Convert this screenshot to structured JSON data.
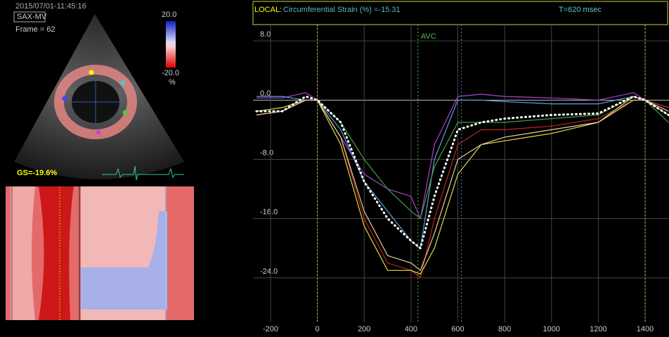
{
  "left_panel": {
    "timestamp": "2015/07/01-11:45:16",
    "view": "SAX-MV",
    "frame": "Frame = 62",
    "scale_top": "20.0",
    "scale_bottom": "-20.0",
    "scale_unit": "%",
    "global_strain": "GS=-19.6%"
  },
  "chart_data": {
    "type": "line",
    "local_label": "LOCAL:",
    "measure": "Circumferential Strain (%) =-15.31",
    "time_label": "T=620 msec",
    "x": [
      -260,
      -150,
      -50,
      0,
      100,
      200,
      300,
      400,
      440,
      500,
      600,
      700,
      800,
      1000,
      1200,
      1350,
      1400,
      1500
    ],
    "series": [
      {
        "color": "#b040d0",
        "values": [
          0.3,
          0.3,
          1,
          0,
          -5,
          -10,
          -12,
          -13,
          -16,
          -6,
          0.5,
          0.8,
          0.5,
          0.3,
          0,
          1,
          0,
          -1
        ]
      },
      {
        "color": "#5aa0e0",
        "values": [
          0.5,
          0.5,
          0,
          0,
          -4,
          -11,
          -15,
          -19,
          -20,
          -8,
          0,
          0,
          -0.2,
          -0.5,
          -0.5,
          0.5,
          0,
          -1
        ]
      },
      {
        "color": "#40a040",
        "values": [
          -2,
          -1.5,
          0,
          0,
          -3,
          -8,
          -12,
          -15,
          -16,
          -9,
          -3,
          -3,
          -3,
          -2.5,
          -2,
          0.5,
          0,
          -3
        ]
      },
      {
        "color": "#c02020",
        "values": [
          -2,
          -1.5,
          0,
          0,
          -5,
          -16,
          -22,
          -23,
          -24,
          -16,
          -6,
          -4,
          -4,
          -3.5,
          -2.5,
          0,
          0,
          -1
        ]
      },
      {
        "color": "#e0e040",
        "values": [
          -1.5,
          -1,
          0,
          0,
          -6,
          -17,
          -23,
          -23,
          -23.5,
          -20,
          -10,
          -6,
          -5.5,
          -4.5,
          -3,
          0.5,
          0,
          -2
        ]
      },
      {
        "color": "#e8d0a0",
        "values": [
          -2,
          -1.5,
          0,
          0,
          -5,
          -15,
          -21,
          -22,
          -23,
          -18,
          -8,
          -6,
          -5,
          -4,
          -3,
          0,
          0,
          -1.5
        ]
      },
      {
        "color": "#ffffff",
        "dotted": true,
        "values": [
          -1.5,
          -1.5,
          0.5,
          0,
          -3,
          -11,
          -16,
          -19,
          -20,
          -13,
          -4,
          -3,
          -2.5,
          -2,
          -1.8,
          0.5,
          0,
          -2
        ]
      }
    ],
    "markers": [
      {
        "x": 0,
        "color": "#c8c840"
      },
      {
        "x": 430,
        "color": "#50c050",
        "label": "AVC"
      },
      {
        "x": 615,
        "color": "#4080c0"
      },
      {
        "x": 1400,
        "color": "#c8c840"
      }
    ],
    "xlim": [
      -275,
      1502
    ],
    "ylim": [
      -30,
      10.2
    ],
    "xticks": [
      -200,
      0,
      200,
      400,
      600,
      800,
      1000,
      1200,
      1400
    ],
    "yticks": [
      {
        "value": 8,
        "label": "8.0"
      },
      {
        "value": 0,
        "label": "0.0"
      },
      {
        "value": -8,
        "label": "-8.0"
      },
      {
        "value": -16,
        "label": "-16.0"
      },
      {
        "value": -24,
        "label": "-24.0"
      }
    ],
    "grid": true
  }
}
